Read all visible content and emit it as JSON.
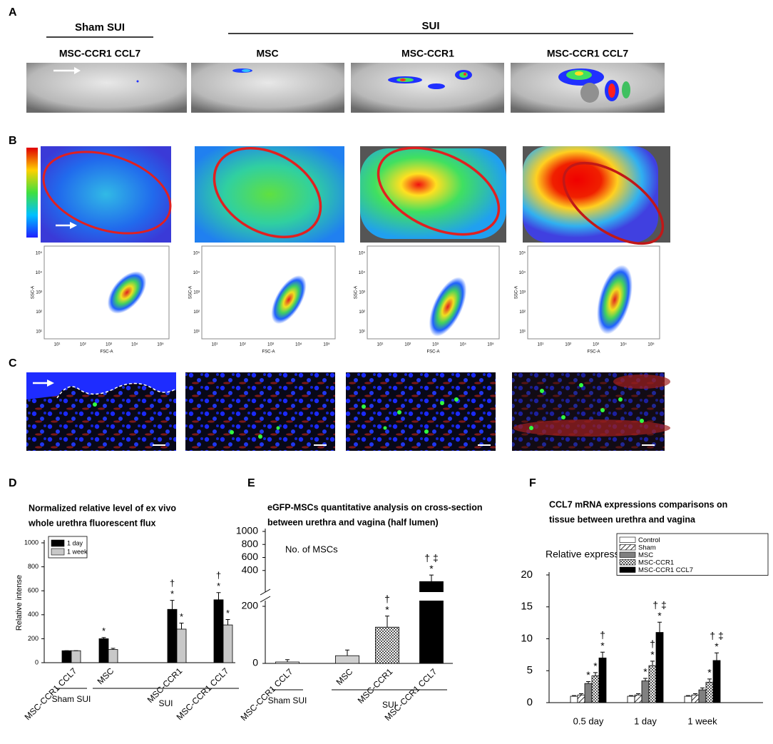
{
  "panel_a": {
    "label": "A",
    "groups": [
      "Sham SUI",
      "SUI"
    ],
    "columns": [
      "MSC-CCR1 CCL7",
      "MSC",
      "MSC-CCR1",
      "MSC-CCR1 CCL7"
    ]
  },
  "panel_b": {
    "label": "B",
    "flow_axes": {
      "x_label": "FSC-A",
      "y_label": "SSC-A",
      "ticks": [
        "10¹",
        "10²",
        "10³",
        "10⁴",
        "10⁵"
      ]
    }
  },
  "panel_c": {
    "label": "C"
  },
  "chart_data": [
    {
      "panel": "D",
      "type": "bar",
      "title": [
        "Normalized relative level of ex vivo",
        "whole urethra fluorescent flux"
      ],
      "y_label": "Relative intense",
      "categories": [
        "MSC-CCR1 CCL7",
        "MSC",
        "MSC-CCR1",
        "MSC-CCR1 CCL7"
      ],
      "category_groups": [
        "Sham SUI",
        "SUI"
      ],
      "ylim": [
        0,
        1000
      ],
      "yticks": [
        0,
        200,
        400,
        600,
        800,
        1000
      ],
      "legend": "top-left",
      "series": [
        {
          "name": "1 day",
          "color": "#000000",
          "values": [
            100,
            200,
            445,
            525
          ],
          "errors": [
            0,
            10,
            75,
            60
          ],
          "markers": [
            null,
            [
              "*"
            ],
            [
              "†",
              "*"
            ],
            [
              "†",
              "*"
            ]
          ]
        },
        {
          "name": "1 week",
          "color": "#c8c8c8",
          "values": [
            100,
            110,
            280,
            315
          ],
          "errors": [
            0,
            10,
            50,
            45
          ],
          "markers": [
            null,
            null,
            [
              "*"
            ],
            [
              "*"
            ]
          ]
        }
      ]
    },
    {
      "panel": "E",
      "type": "bar",
      "title": [
        "eGFP-MSCs quantitative analysis on cross-section",
        "between  urethra  and vagina (half lumen)"
      ],
      "y_label": "No. of MSCs",
      "categories": [
        "MSC-CCR1 CCL7",
        "MSC",
        "MSC-CCR1",
        "MSC-CCR1 CCL7"
      ],
      "category_groups": [
        "Sham SUI",
        "SUI"
      ],
      "ylim": [
        0,
        1000
      ],
      "yticks": [
        0,
        200,
        400,
        600,
        800,
        1000
      ],
      "y_break": 200,
      "series": [
        {
          "colors": [
            "#ffffff",
            "#d0d0d0",
            "#ffffff",
            "#000000"
          ],
          "patterns": [
            null,
            null,
            "check",
            null
          ],
          "values": [
            5,
            27,
            127,
            230
          ],
          "errors": [
            8,
            20,
            39,
            100
          ],
          "markers": [
            null,
            null,
            [
              "†",
              "*"
            ],
            [
              "†  ‡",
              "*"
            ]
          ]
        }
      ]
    },
    {
      "panel": "F",
      "type": "bar",
      "title": [
        "CCL7 mRNA expressions comparisons on",
        "tissue between  urethra  and vagina"
      ],
      "y_label": "Relative expressions",
      "categories": [
        "0.5 day",
        "1 day",
        "1 week"
      ],
      "ylim": [
        0,
        20
      ],
      "yticks": [
        0,
        5,
        10,
        15,
        20
      ],
      "legend": "top-right",
      "series": [
        {
          "name": "Control",
          "color": "#ffffff",
          "values": [
            1,
            1,
            1
          ],
          "errors": [
            0.1,
            0.1,
            0.1
          ],
          "markers": [
            null,
            null,
            null
          ]
        },
        {
          "name": "Sham",
          "color": "#ffffff",
          "pattern": "hatch",
          "values": [
            1.2,
            1.2,
            1.2
          ],
          "errors": [
            0.2,
            0.2,
            0.2
          ],
          "markers": [
            null,
            null,
            null
          ]
        },
        {
          "name": "MSC",
          "color": "#808080",
          "values": [
            3,
            3.4,
            2
          ],
          "errors": [
            0.3,
            0.4,
            0.3
          ],
          "markers": [
            [
              "*"
            ],
            [
              "*"
            ],
            null
          ]
        },
        {
          "name": "MSC-CCR1",
          "color": "#ffffff",
          "pattern": "check",
          "values": [
            4.2,
            5.8,
            3.2
          ],
          "errors": [
            0.5,
            0.7,
            0.5
          ],
          "markers": [
            [
              "*"
            ],
            [
              "†",
              "*"
            ],
            [
              "*"
            ]
          ]
        },
        {
          "name": "MSC-CCR1 CCL7",
          "color": "#000000",
          "values": [
            7,
            11,
            6.6
          ],
          "errors": [
            0.9,
            1.6,
            1.2
          ],
          "markers": [
            [
              "†",
              "*"
            ],
            [
              "† ‡",
              "*"
            ],
            [
              "† ‡",
              "*"
            ]
          ]
        }
      ]
    }
  ]
}
